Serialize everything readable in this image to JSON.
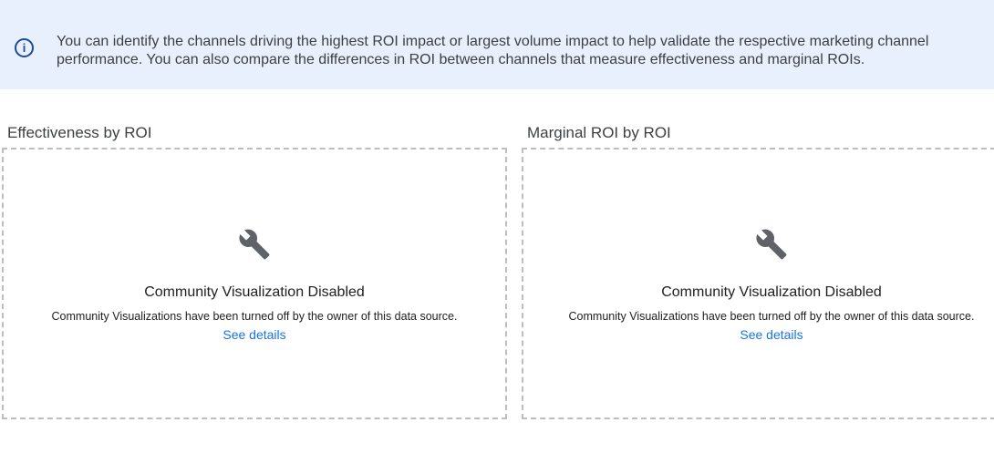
{
  "banner": {
    "icon": "info-icon",
    "text": "You can identify the channels driving the highest ROI impact or largest volume impact to help validate the respective marketing channel performance. You can also compare the differences in ROI between channels that measure effectiveness and marginal ROIs."
  },
  "panels": [
    {
      "title": "Effectiveness by ROI",
      "icon": "wrench-icon",
      "heading": "Community Visualization Disabled",
      "message": "Community Visualizations have been turned off by the owner of this data source.",
      "link": "See details"
    },
    {
      "title": "Marginal ROI by ROI",
      "icon": "wrench-icon",
      "heading": "Community Visualization Disabled",
      "message": "Community Visualizations have been turned off by the owner of this data source.",
      "link": "See details"
    }
  ],
  "colors": {
    "banner_bg": "#e8f0fe",
    "link": "#1a73e8",
    "icon": "#5f6368"
  }
}
